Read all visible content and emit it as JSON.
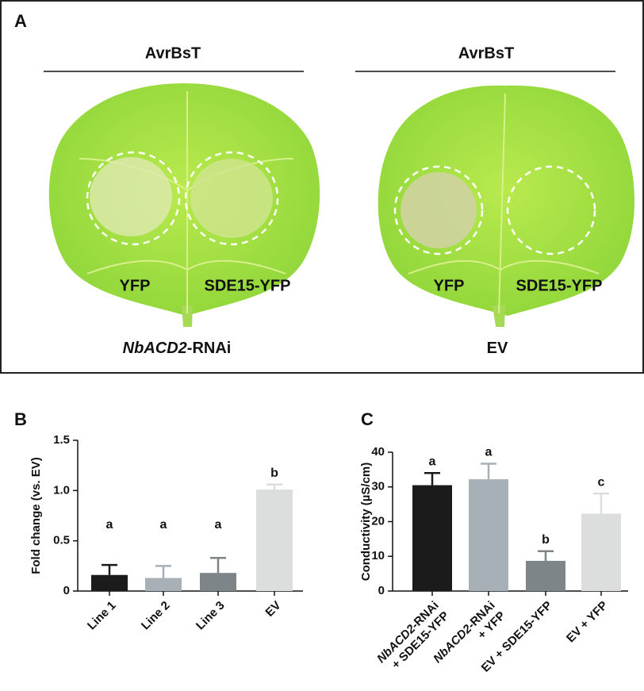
{
  "panel_a": {
    "letter": "A",
    "leaves": [
      {
        "treatment": "AvrBsT",
        "left_spot": "YFP",
        "right_spot": "SDE15-YFP",
        "label": [
          {
            "text": "NbACD2",
            "italic": true
          },
          {
            "text": "-RNAi",
            "italic": false
          }
        ]
      },
      {
        "treatment": "AvrBsT",
        "left_spot": "YFP",
        "right_spot": "SDE15-YFP",
        "label": [
          {
            "text": "EV",
            "italic": false
          }
        ]
      }
    ]
  },
  "chart_data": [
    {
      "type": "bar",
      "letter": "B",
      "ylabel": "Fold change (vs. EV)",
      "categories": [
        [
          [
            {
              "text": "Line 1",
              "italic": false
            }
          ]
        ],
        [
          [
            {
              "text": "Line 2",
              "italic": false
            }
          ]
        ],
        [
          [
            {
              "text": "Line 3",
              "italic": false
            }
          ]
        ],
        [
          [
            {
              "text": "EV",
              "italic": false
            }
          ]
        ]
      ],
      "values": [
        0.16,
        0.13,
        0.18,
        1.01
      ],
      "errors": [
        0.1,
        0.12,
        0.15,
        0.05
      ],
      "letters": [
        "a",
        "a",
        "a",
        "b"
      ],
      "colors": [
        "#1b1b1b",
        "#a7b0b6",
        "#7d8588",
        "#dcdedd"
      ],
      "ylim": [
        0,
        1.5
      ],
      "yticks": [
        0,
        0.5,
        {
          "value": 1,
          "label": "1.0"
        },
        1.5
      ]
    },
    {
      "type": "bar",
      "letter": "C",
      "ylabel": "Conductivity (µS/cm)",
      "categories": [
        [
          [
            {
              "text": "NbACD2",
              "italic": true
            },
            {
              "text": "-RNAi",
              "italic": false
            }
          ],
          [
            {
              "text": "+ SDE15-YFP",
              "italic": false
            }
          ]
        ],
        [
          [
            {
              "text": "NbACD2",
              "italic": true
            },
            {
              "text": "-RNAi",
              "italic": false
            }
          ],
          [
            {
              "text": "+ YFP",
              "italic": false
            }
          ]
        ],
        [
          [
            {
              "text": "EV + SDE15-YFP",
              "italic": false
            }
          ]
        ],
        [
          [
            {
              "text": "EV + YFP",
              "italic": false
            }
          ]
        ]
      ],
      "values": [
        30.5,
        32.2,
        8.7,
        22.3
      ],
      "errors": [
        3.5,
        4.5,
        2.8,
        5.8
      ],
      "letters": [
        "a",
        "a",
        "b",
        "c"
      ],
      "colors": [
        "#1b1b1b",
        "#a7b0b6",
        "#7d8588",
        "#dcdedd"
      ],
      "ylim": [
        0,
        40
      ],
      "yticks": [
        0,
        10,
        20,
        30,
        40
      ]
    }
  ]
}
